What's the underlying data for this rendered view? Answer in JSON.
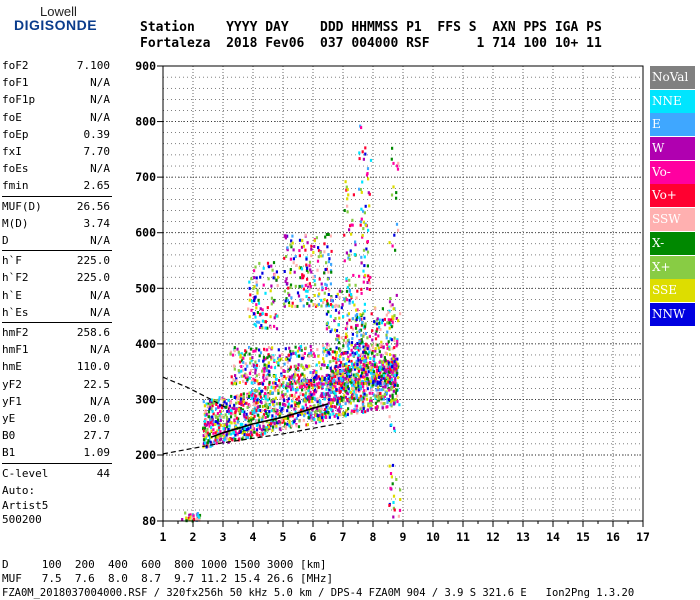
{
  "logo": {
    "line1": "Lowell",
    "line2": "DIGISONDE"
  },
  "header": {
    "line1": "Station    YYYY DAY    DDD HHMMSS P1  FFS S  AXN PPS IGA PS",
    "line2": "Fortaleza  2018 Fev06  037 004000 RSF      1 714 100 10+ 11"
  },
  "params_group1": [
    {
      "k": "foF2",
      "v": "7.100"
    },
    {
      "k": "foF1",
      "v": "N/A"
    },
    {
      "k": "foF1p",
      "v": "N/A"
    },
    {
      "k": "foE",
      "v": "N/A"
    },
    {
      "k": "foEp",
      "v": "0.39"
    },
    {
      "k": "fxI",
      "v": "7.70"
    },
    {
      "k": "foEs",
      "v": "N/A"
    },
    {
      "k": "fmin",
      "v": "2.65"
    }
  ],
  "params_group2": [
    {
      "k": "MUF(D)",
      "v": "26.56"
    },
    {
      "k": "M(D)",
      "v": "3.74"
    },
    {
      "k": "D",
      "v": "N/A"
    }
  ],
  "params_group3": [
    {
      "k": "h`F",
      "v": "225.0"
    },
    {
      "k": "h`F2",
      "v": "225.0"
    },
    {
      "k": "h`E",
      "v": "N/A"
    },
    {
      "k": "h`Es",
      "v": "N/A"
    }
  ],
  "params_group4": [
    {
      "k": "hmF2",
      "v": "258.6"
    },
    {
      "k": "hmF1",
      "v": "N/A"
    },
    {
      "k": "hmE",
      "v": "110.0"
    },
    {
      "k": "yF2",
      "v": "22.5"
    },
    {
      "k": "yF1",
      "v": "N/A"
    },
    {
      "k": "yE",
      "v": "20.0"
    },
    {
      "k": "B0",
      "v": "27.7"
    },
    {
      "k": "B1",
      "v": "1.09"
    }
  ],
  "params_group5": [
    {
      "k": "C-level",
      "v": "44"
    }
  ],
  "autoscale": {
    "line1": "Auto:",
    "line2": "Artist5",
    "line3": "500200"
  },
  "legend": [
    {
      "label": "NoVal",
      "color": "#808080"
    },
    {
      "label": "NNE",
      "color": "#00e5ff"
    },
    {
      "label": "E",
      "color": "#3fa7ff"
    },
    {
      "label": "W",
      "color": "#b000b0"
    },
    {
      "label": "Vo-",
      "color": "#ff00a0"
    },
    {
      "label": "Vo+",
      "color": "#ff0030"
    },
    {
      "label": "SSW",
      "color": "#ffb0b0"
    },
    {
      "label": "X-",
      "color": "#008800"
    },
    {
      "label": "X+",
      "color": "#88cc44"
    },
    {
      "label": "SSE",
      "color": "#dddd00"
    },
    {
      "label": "NNW",
      "color": "#0000e0"
    }
  ],
  "footer": {
    "line1": "D     100  200  400  600  800 1000 1500 3000 [km]",
    "line2": "MUF   7.5  7.6  8.0  8.7  9.7 11.2 15.4 26.6 [MHz]",
    "fname": "FZA0M_2018037004000.RSF / 320fx256h 50 kHz 5.0 km / DPS-4 FZA0M 904 / 3.9 S 321.6 E   Ion2Png 1.3.20"
  },
  "chart_data": {
    "type": "scatter",
    "xlim": [
      1,
      17
    ],
    "ylim": [
      80,
      900
    ],
    "xticks": [
      1,
      2,
      3,
      4,
      5,
      6,
      7,
      8,
      9,
      10,
      11,
      12,
      13,
      14,
      15,
      16,
      17
    ],
    "yticks": [
      80,
      200,
      300,
      400,
      500,
      600,
      700,
      800,
      900
    ],
    "grid": true,
    "profile": {
      "x": [
        2.6,
        3.0,
        3.5,
        4.0,
        4.5,
        5.0,
        5.5,
        6.0,
        6.5
      ],
      "y": [
        232,
        240,
        248,
        256,
        262,
        268,
        276,
        284,
        292
      ]
    },
    "extrapolation_upper": {
      "x": [
        1.0,
        1.8,
        2.6,
        3.2
      ],
      "y": [
        340,
        322,
        300,
        282
      ]
    },
    "extrapolation_lower": {
      "x": [
        1.0,
        2.0,
        3.0,
        4.0,
        5.0,
        6.0,
        7.0
      ],
      "y": [
        202,
        212,
        222,
        230,
        238,
        248,
        258
      ]
    },
    "clusters": [
      {
        "x": [
          1.6,
          2.2
        ],
        "y": [
          82,
          100
        ],
        "n": 30
      },
      {
        "x": [
          2.3,
          8.8
        ],
        "y": [
          225,
          330
        ],
        "n": 1500
      },
      {
        "x": [
          3.2,
          8.7
        ],
        "y": [
          330,
          400
        ],
        "n": 500
      },
      {
        "x": [
          3.8,
          4.8
        ],
        "y": [
          430,
          550
        ],
        "n": 90
      },
      {
        "x": [
          5.0,
          6.6
        ],
        "y": [
          470,
          600
        ],
        "n": 180
      },
      {
        "x": [
          6.4,
          7.7
        ],
        "y": [
          300,
          500
        ],
        "n": 220
      },
      {
        "x": [
          7.4,
          8.8
        ],
        "y": [
          330,
          470
        ],
        "n": 220
      },
      {
        "x": [
          7.0,
          7.4
        ],
        "y": [
          350,
          700
        ],
        "n": 60
      },
      {
        "x": [
          7.5,
          7.9
        ],
        "y": [
          500,
          800
        ],
        "n": 60
      },
      {
        "x": [
          8.5,
          8.9
        ],
        "y": [
          90,
          760
        ],
        "n": 60
      }
    ]
  }
}
